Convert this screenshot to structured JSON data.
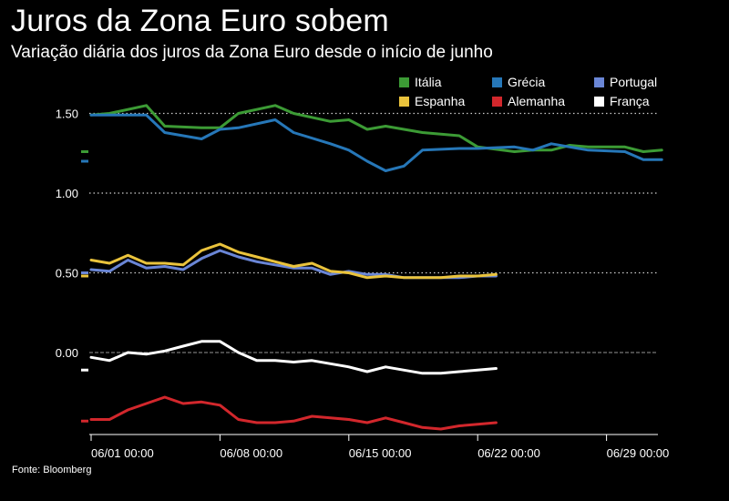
{
  "title": "Juros da Zona Euro sobem",
  "subtitle": "Variação diária dos juros da Zona Euro desde o início de junho",
  "source": "Fonte: Bloomberg",
  "colors": {
    "Itália": "#3c9b35",
    "Grécia": "#2677b8",
    "Portugal": "#6a86d6",
    "Espanha": "#eac33c",
    "Alemanha": "#d2272c",
    "França": "#ffffff",
    "zero_line": "#777777",
    "grid": "#cccccc"
  },
  "legend": [
    "Itália",
    "Grécia",
    "Portugal",
    "Espanha",
    "Alemanha",
    "França"
  ],
  "chart_data": {
    "type": "line",
    "x": [
      "06/01",
      "06/02",
      "06/03",
      "06/04",
      "06/05",
      "06/06",
      "06/07",
      "06/08",
      "06/09",
      "06/10",
      "06/11",
      "06/12",
      "06/13",
      "06/14",
      "06/15",
      "06/16",
      "06/17",
      "06/18",
      "06/19",
      "06/20",
      "06/21",
      "06/22",
      "06/23",
      "06/24",
      "06/25",
      "06/26",
      "06/27",
      "06/28",
      "06/29",
      "06/30"
    ],
    "x_tick_labels": [
      "06/01 00:00",
      "06/08 00:00",
      "06/15 00:00",
      "06/22 00:00",
      "06/29 00:00"
    ],
    "x_tick_indices": [
      0,
      7,
      14,
      21,
      28
    ],
    "y_tick_labels": [
      "1.50",
      "1.00",
      "0.50",
      "0.00"
    ],
    "y_tick_values": [
      1.5,
      1.0,
      0.5,
      0.0
    ],
    "ylim": [
      -0.5,
      1.72
    ],
    "grid": "dotted horizontal at y ticks",
    "legend_placement": "top-right",
    "series": [
      {
        "name": "Itália",
        "points": [
          [
            0,
            1.49
          ],
          [
            1,
            1.5
          ],
          [
            3,
            1.55
          ],
          [
            4,
            1.42
          ],
          [
            6,
            1.41
          ],
          [
            7,
            1.41
          ],
          [
            8,
            1.5
          ],
          [
            10,
            1.55
          ],
          [
            11,
            1.5
          ],
          [
            13,
            1.45
          ],
          [
            14,
            1.46
          ],
          [
            15,
            1.4
          ],
          [
            16,
            1.42
          ],
          [
            18,
            1.38
          ],
          [
            20,
            1.36
          ],
          [
            21,
            1.29
          ],
          [
            23,
            1.26
          ],
          [
            24,
            1.27
          ],
          [
            25,
            1.27
          ],
          [
            26,
            1.3
          ],
          [
            27,
            1.29
          ],
          [
            29,
            1.29
          ],
          [
            30,
            1.26
          ],
          [
            31,
            1.27
          ]
        ],
        "end_value": 1.26
      },
      {
        "name": "Grécia",
        "points": [
          [
            0,
            1.49
          ],
          [
            1,
            1.49
          ],
          [
            3,
            1.49
          ],
          [
            4,
            1.38
          ],
          [
            6,
            1.34
          ],
          [
            7,
            1.4
          ],
          [
            8,
            1.41
          ],
          [
            10,
            1.46
          ],
          [
            11,
            1.38
          ],
          [
            13,
            1.31
          ],
          [
            14,
            1.27
          ],
          [
            15,
            1.2
          ],
          [
            16,
            1.14
          ],
          [
            17,
            1.17
          ],
          [
            18,
            1.27
          ],
          [
            20,
            1.28
          ],
          [
            21,
            1.28
          ],
          [
            23,
            1.29
          ],
          [
            24,
            1.27
          ],
          [
            25,
            1.31
          ],
          [
            26,
            1.29
          ],
          [
            27,
            1.27
          ],
          [
            29,
            1.26
          ],
          [
            30,
            1.21
          ],
          [
            31,
            1.21
          ]
        ],
        "end_value": 1.2
      },
      {
        "name": "Portugal",
        "points": [
          [
            0,
            0.52
          ],
          [
            1,
            0.51
          ],
          [
            2,
            0.58
          ],
          [
            3,
            0.53
          ],
          [
            4,
            0.54
          ],
          [
            5,
            0.52
          ],
          [
            6,
            0.59
          ],
          [
            7,
            0.64
          ],
          [
            8,
            0.6
          ],
          [
            9,
            0.57
          ],
          [
            10,
            0.55
          ],
          [
            11,
            0.53
          ],
          [
            12,
            0.53
          ],
          [
            13,
            0.49
          ],
          [
            14,
            0.51
          ],
          [
            15,
            0.49
          ],
          [
            16,
            0.49
          ],
          [
            17,
            0.47
          ],
          [
            18,
            0.47
          ],
          [
            19,
            0.47
          ],
          [
            20,
            0.47
          ],
          [
            21,
            0.48
          ],
          [
            22,
            0.48
          ]
        ],
        "end_value": 0.5
      },
      {
        "name": "Espanha",
        "points": [
          [
            0,
            0.58
          ],
          [
            1,
            0.56
          ],
          [
            2,
            0.61
          ],
          [
            3,
            0.56
          ],
          [
            4,
            0.56
          ],
          [
            5,
            0.55
          ],
          [
            6,
            0.64
          ],
          [
            7,
            0.68
          ],
          [
            8,
            0.63
          ],
          [
            9,
            0.6
          ],
          [
            10,
            0.57
          ],
          [
            11,
            0.54
          ],
          [
            12,
            0.56
          ],
          [
            13,
            0.51
          ],
          [
            14,
            0.5
          ],
          [
            15,
            0.47
          ],
          [
            16,
            0.48
          ],
          [
            17,
            0.47
          ],
          [
            18,
            0.47
          ],
          [
            19,
            0.47
          ],
          [
            20,
            0.48
          ],
          [
            21,
            0.48
          ],
          [
            22,
            0.49
          ]
        ],
        "end_value": 0.48
      },
      {
        "name": "Alemanha",
        "points": [
          [
            0,
            -0.42
          ],
          [
            1,
            -0.42
          ],
          [
            2,
            -0.36
          ],
          [
            3,
            -0.32
          ],
          [
            4,
            -0.28
          ],
          [
            5,
            -0.32
          ],
          [
            6,
            -0.31
          ],
          [
            7,
            -0.33
          ],
          [
            8,
            -0.42
          ],
          [
            9,
            -0.44
          ],
          [
            10,
            -0.44
          ],
          [
            11,
            -0.43
          ],
          [
            12,
            -0.4
          ],
          [
            13,
            -0.41
          ],
          [
            14,
            -0.42
          ],
          [
            15,
            -0.44
          ],
          [
            16,
            -0.41
          ],
          [
            17,
            -0.44
          ],
          [
            18,
            -0.47
          ],
          [
            19,
            -0.48
          ],
          [
            20,
            -0.46
          ],
          [
            21,
            -0.45
          ],
          [
            22,
            -0.44
          ]
        ],
        "end_value": -0.43
      },
      {
        "name": "França",
        "points": [
          [
            0,
            -0.03
          ],
          [
            1,
            -0.05
          ],
          [
            2,
            0.0
          ],
          [
            3,
            -0.01
          ],
          [
            4,
            0.01
          ],
          [
            5,
            0.04
          ],
          [
            6,
            0.07
          ],
          [
            7,
            0.07
          ],
          [
            8,
            0.0
          ],
          [
            9,
            -0.05
          ],
          [
            10,
            -0.05
          ],
          [
            11,
            -0.06
          ],
          [
            12,
            -0.05
          ],
          [
            13,
            -0.07
          ],
          [
            14,
            -0.09
          ],
          [
            15,
            -0.12
          ],
          [
            16,
            -0.09
          ],
          [
            17,
            -0.11
          ],
          [
            18,
            -0.13
          ],
          [
            19,
            -0.13
          ],
          [
            20,
            -0.12
          ],
          [
            21,
            -0.11
          ],
          [
            22,
            -0.1
          ]
        ],
        "end_value": -0.11
      }
    ]
  }
}
